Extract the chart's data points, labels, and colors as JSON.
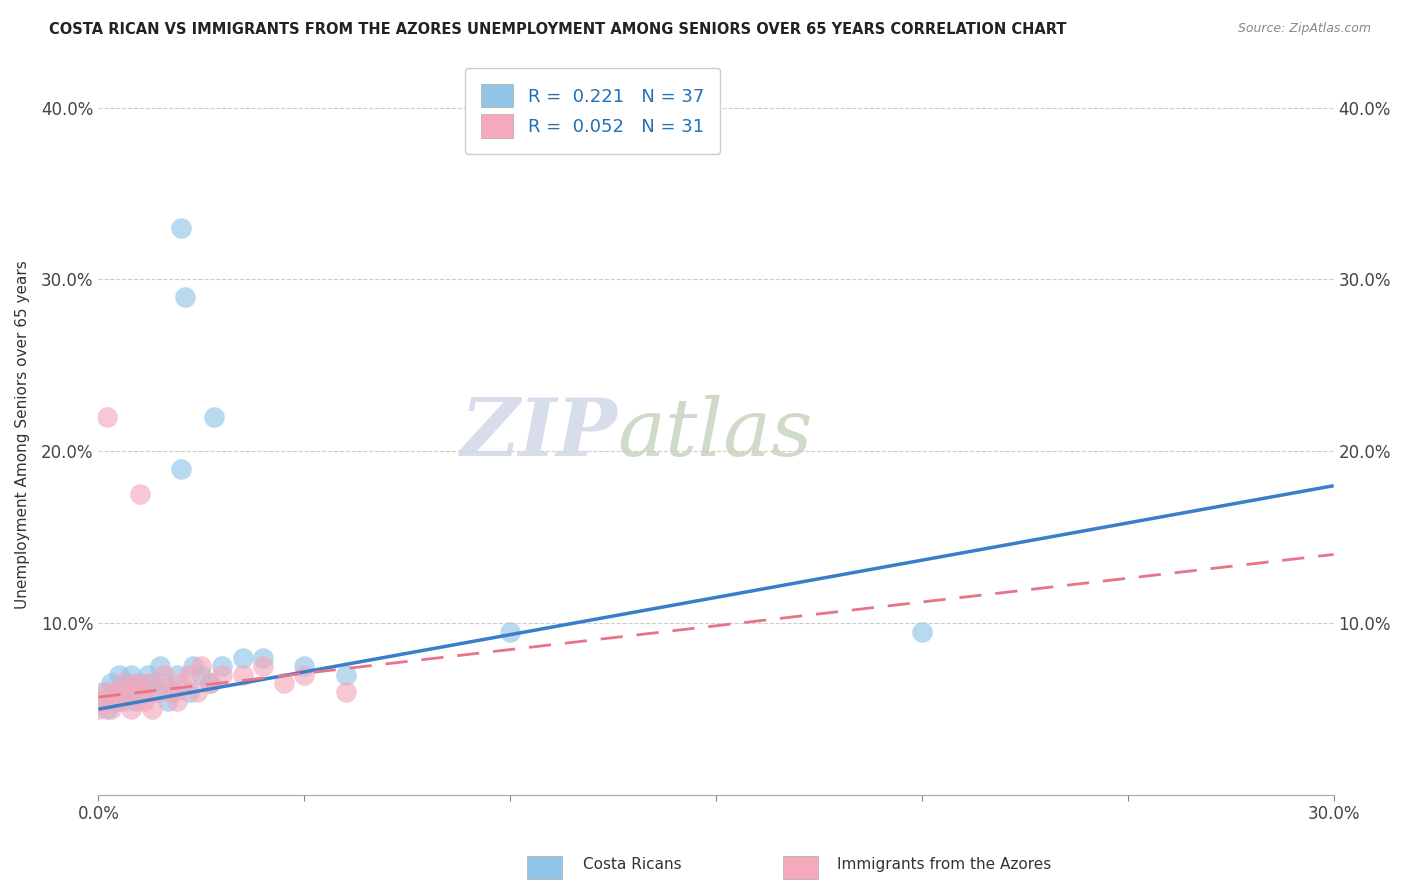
{
  "title": "COSTA RICAN VS IMMIGRANTS FROM THE AZORES UNEMPLOYMENT AMONG SENIORS OVER 65 YEARS CORRELATION CHART",
  "source": "Source: ZipAtlas.com",
  "ylabel": "Unemployment Among Seniors over 65 years",
  "xlim": [
    0.0,
    0.3
  ],
  "ylim": [
    0.0,
    0.42
  ],
  "x_ticks": [
    0.0,
    0.05,
    0.1,
    0.15,
    0.2,
    0.25,
    0.3
  ],
  "x_tick_labels_show": [
    "0.0%",
    "",
    "",
    "",
    "",
    "",
    "30.0%"
  ],
  "y_ticks": [
    0.0,
    0.1,
    0.2,
    0.3,
    0.4
  ],
  "y_tick_labels_left": [
    "",
    "10.0%",
    "20.0%",
    "30.0%",
    "40.0%"
  ],
  "y_tick_labels_right": [
    "",
    "10.0%",
    "20.0%",
    "30.0%",
    "40.0%"
  ],
  "blue_color": "#92c5e8",
  "pink_color": "#f4a9bc",
  "blue_line_color": "#3a7dc9",
  "pink_line_color": "#e8748a",
  "legend_R1": "0.221",
  "legend_N1": "37",
  "legend_R2": "0.052",
  "legend_N2": "31",
  "legend_label1": "Costa Ricans",
  "legend_label2": "Immigrants from the Azores",
  "watermark_zip": "ZIP",
  "watermark_atlas": "atlas",
  "blue_scatter_x": [
    0.0,
    0.001,
    0.002,
    0.003,
    0.004,
    0.005,
    0.005,
    0.006,
    0.007,
    0.008,
    0.008,
    0.009,
    0.01,
    0.011,
    0.012,
    0.013,
    0.014,
    0.015,
    0.016,
    0.017,
    0.018,
    0.019,
    0.02,
    0.022,
    0.023,
    0.025,
    0.027,
    0.03,
    0.035,
    0.04,
    0.05,
    0.06,
    0.1,
    0.2,
    0.02,
    0.021,
    0.028
  ],
  "blue_scatter_y": [
    0.055,
    0.06,
    0.05,
    0.065,
    0.055,
    0.06,
    0.07,
    0.055,
    0.065,
    0.06,
    0.07,
    0.055,
    0.065,
    0.06,
    0.07,
    0.065,
    0.06,
    0.075,
    0.065,
    0.055,
    0.06,
    0.07,
    0.19,
    0.06,
    0.075,
    0.07,
    0.065,
    0.075,
    0.08,
    0.08,
    0.075,
    0.07,
    0.095,
    0.095,
    0.33,
    0.29,
    0.22
  ],
  "pink_scatter_x": [
    0.0,
    0.001,
    0.002,
    0.003,
    0.004,
    0.005,
    0.006,
    0.007,
    0.008,
    0.009,
    0.01,
    0.011,
    0.012,
    0.013,
    0.015,
    0.016,
    0.018,
    0.019,
    0.02,
    0.022,
    0.024,
    0.025,
    0.027,
    0.03,
    0.035,
    0.04,
    0.045,
    0.05,
    0.06,
    0.01,
    0.002
  ],
  "pink_scatter_y": [
    0.05,
    0.055,
    0.06,
    0.05,
    0.06,
    0.055,
    0.065,
    0.06,
    0.05,
    0.065,
    0.06,
    0.055,
    0.065,
    0.05,
    0.06,
    0.07,
    0.06,
    0.055,
    0.065,
    0.07,
    0.06,
    0.075,
    0.065,
    0.07,
    0.07,
    0.075,
    0.065,
    0.07,
    0.06,
    0.175,
    0.22
  ],
  "blue_trendline_x0": 0.0,
  "blue_trendline_y0": 0.05,
  "blue_trendline_x1": 0.3,
  "blue_trendline_y1": 0.18,
  "pink_trendline_x0": 0.0,
  "pink_trendline_y0": 0.057,
  "pink_trendline_x1": 0.3,
  "pink_trendline_y1": 0.14
}
